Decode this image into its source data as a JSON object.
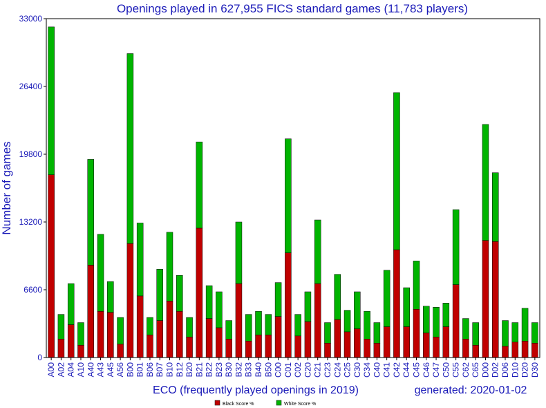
{
  "chart_data": {
    "type": "bar",
    "stacked": true,
    "title": "Openings played in 627,955 FICS standard games (11,783 players)",
    "xlabel": "ECO (frequently played openings in 2019)",
    "ylabel": "Number of games",
    "generated": "generated: 2020-01-02",
    "ylim": [
      0,
      33000
    ],
    "yticks": [
      0,
      6600,
      13200,
      19800,
      26400,
      33000
    ],
    "grid": false,
    "legend_position": "bottom-center",
    "categories": [
      "A00",
      "A02",
      "A04",
      "A10",
      "A40",
      "A43",
      "A45",
      "A56",
      "B00",
      "B01",
      "B06",
      "B07",
      "B10",
      "B12",
      "B20",
      "B21",
      "B22",
      "B23",
      "B30",
      "B32",
      "B33",
      "B40",
      "B50",
      "C00",
      "C01",
      "C02",
      "C20",
      "C21",
      "C23",
      "C24",
      "C25",
      "C30",
      "C34",
      "C40",
      "C41",
      "C42",
      "C44",
      "C45",
      "C46",
      "C47",
      "C50",
      "C55",
      "C62",
      "C65",
      "D00",
      "D02",
      "D06",
      "D10",
      "D20",
      "D30"
    ],
    "series": [
      {
        "name": "Black Score %",
        "color": "#c00000",
        "values": [
          17800,
          1800,
          3200,
          1200,
          9000,
          4500,
          4400,
          1300,
          11100,
          6000,
          2200,
          3600,
          5500,
          4500,
          2000,
          12600,
          3800,
          2900,
          1800,
          7200,
          1600,
          2200,
          2200,
          4000,
          10200,
          2100,
          3500,
          7200,
          1400,
          3700,
          2500,
          2800,
          1800,
          1400,
          3000,
          10500,
          3000,
          4700,
          2400,
          2000,
          3000,
          7100,
          1800,
          1200,
          11400,
          11300,
          1100,
          1500,
          1600,
          1400
        ],
        "totals": [
          32200,
          4200,
          7200,
          3400,
          19300,
          12000,
          7400,
          3900,
          29600,
          13100,
          3900,
          8600,
          12200,
          8000,
          3900,
          21000,
          7000,
          6400,
          3600,
          13200,
          4200,
          4500,
          4200,
          7300,
          21300,
          4200,
          6400,
          13400,
          3400,
          8100,
          4600,
          6400,
          4500,
          3400,
          8500,
          25800,
          6800,
          9400,
          5000,
          4900,
          5300,
          14400,
          3800,
          3400,
          22700,
          18000,
          3600,
          3400,
          4800,
          3400
        ]
      },
      {
        "name": "White Score %",
        "color": "#00b400"
      }
    ]
  }
}
